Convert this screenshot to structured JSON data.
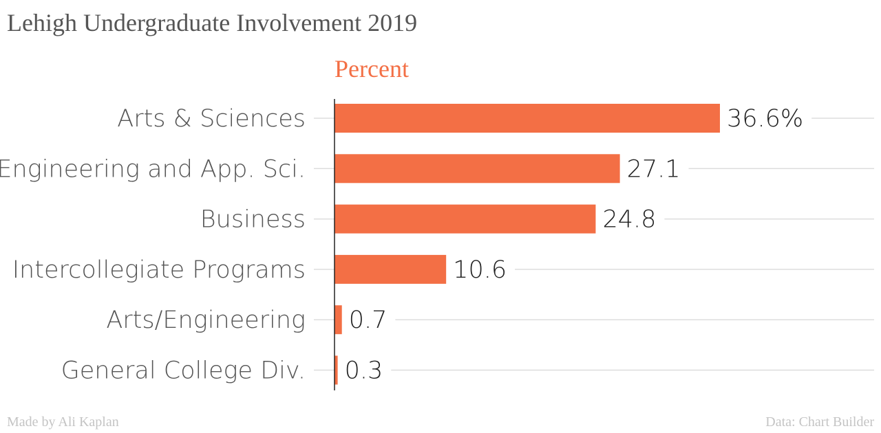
{
  "header": {
    "title": "Lehigh Undergraduate Involvement 2019"
  },
  "footer": {
    "credit": "Made by Ali Kaplan",
    "source": "Data: Chart Builder"
  },
  "colors": {
    "bar": "#f36f45",
    "axis_title": "#f36f45",
    "gridline": "#dddddd",
    "axis_line": "#222222"
  },
  "chart_data": {
    "type": "bar",
    "orientation": "horizontal",
    "title": "Lehigh Undergraduate Involvement 2019",
    "xlabel": "Percent",
    "ylabel": "",
    "categories": [
      "Arts & Sciences",
      "Engineering and App. Sci.",
      "Business",
      "Intercollegiate Programs",
      "Arts/Engineering",
      "General College Div."
    ],
    "values": [
      36.6,
      27.1,
      24.8,
      10.6,
      0.7,
      0.3
    ],
    "data_labels": [
      "36.6%",
      "27.1",
      "24.8",
      "10.6",
      "0.7",
      "0.3"
    ],
    "xlim": [
      0,
      42.7
    ],
    "grid": true,
    "legend": "none"
  }
}
